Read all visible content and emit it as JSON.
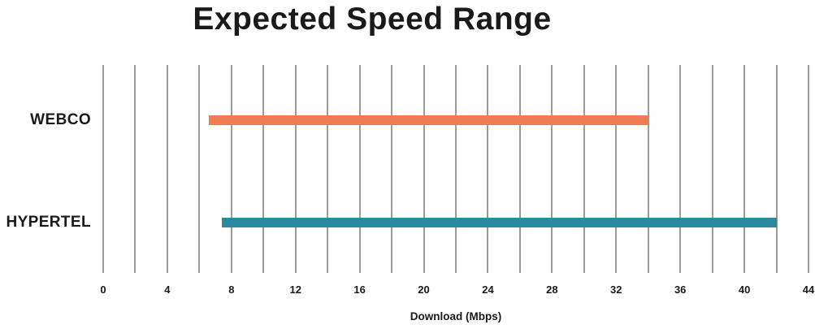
{
  "chart_data": {
    "type": "bar",
    "subtype": "horizontal-range-bar",
    "title": "Expected Speed Range",
    "xlabel": "Download (Mbps)",
    "axis": {
      "min": 0,
      "max": 44,
      "tick_step": 4,
      "grid_step": 2
    },
    "tick_labels": [
      "0",
      "4",
      "8",
      "12",
      "16",
      "20",
      "24",
      "28",
      "32",
      "36",
      "40",
      "44"
    ],
    "rows": [
      {
        "label": "WEBCO",
        "range_min": 6.6,
        "range_max": 34,
        "color": "#EF7C52"
      },
      {
        "label": "HYPERTEL",
        "range_min": 7.4,
        "range_max": 42,
        "color": "#2B8A9D"
      }
    ],
    "colors": {
      "gridline": "#9E9A94",
      "text": "#1A1A1A",
      "background": "#FFFFFF"
    },
    "layout_hints": {
      "grid": "vertical-only",
      "legend": "none",
      "bar_ranges_read_from_gridlines": true
    }
  }
}
